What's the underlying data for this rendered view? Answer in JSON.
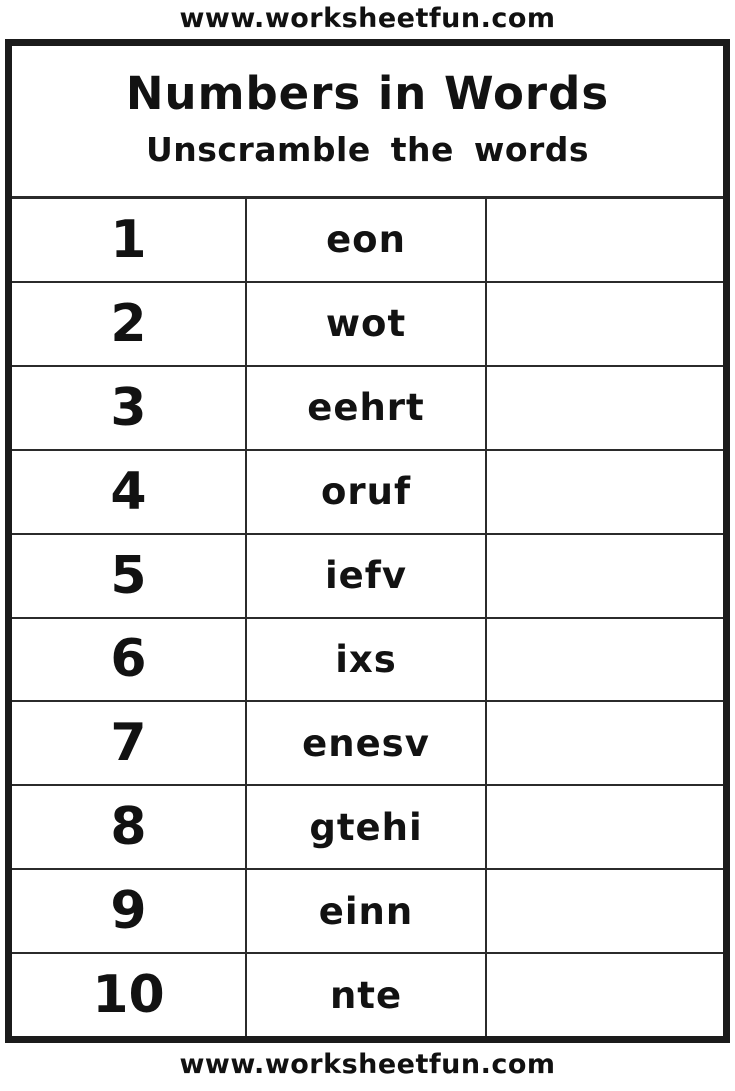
{
  "page": {
    "top_url": "www.worksheetfun.com",
    "bottom_url": "www.worksheetfun.com"
  },
  "worksheet": {
    "title": "Numbers in Words",
    "subtitle": "Unscramble the words",
    "columns": [
      "number",
      "scrambled_word",
      "answer_blank"
    ],
    "rows": [
      {
        "number": "1",
        "scrambled": "eon",
        "answer": ""
      },
      {
        "number": "2",
        "scrambled": "wot",
        "answer": ""
      },
      {
        "number": "3",
        "scrambled": "eehrt",
        "answer": ""
      },
      {
        "number": "4",
        "scrambled": "oruf",
        "answer": ""
      },
      {
        "number": "5",
        "scrambled": "iefv",
        "answer": ""
      },
      {
        "number": "6",
        "scrambled": "ixs",
        "answer": ""
      },
      {
        "number": "7",
        "scrambled": "enesv",
        "answer": ""
      },
      {
        "number": "8",
        "scrambled": "gtehi",
        "answer": ""
      },
      {
        "number": "9",
        "scrambled": "einn",
        "answer": ""
      },
      {
        "number": "10",
        "scrambled": "nte",
        "answer": ""
      }
    ]
  },
  "colors": {
    "ink": "#121212",
    "border": "#1b1b1b",
    "paper": "#ffffff"
  }
}
